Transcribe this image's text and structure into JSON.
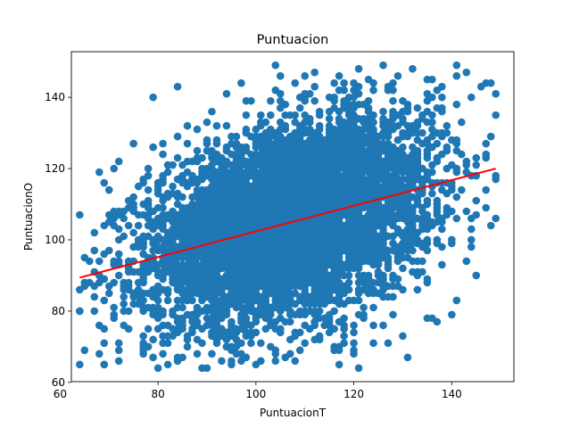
{
  "chart_data": {
    "type": "scatter",
    "title": "Puntuacion",
    "xlabel": "PuntuacionT",
    "ylabel": "PuntuacionO",
    "xlim": [
      62.3,
      152.7
    ],
    "ylim": [
      60.2,
      152.8
    ],
    "xticks": [
      60,
      80,
      100,
      120,
      140
    ],
    "yticks": [
      60,
      80,
      100,
      120,
      140
    ],
    "grid": false,
    "point_color": "#1f77b4",
    "fit_line_color": "#ff0000",
    "scatter_cloud": {
      "n_points": 6000,
      "x_mean": 107,
      "x_sd": 14.5,
      "y_mean": 105,
      "y_sd": 13.5,
      "x_range": [
        64,
        149
      ],
      "y_range": [
        64,
        149
      ],
      "x_integer": true,
      "y_integer": true
    },
    "highlighted_points": [
      {
        "x": 64,
        "y": 80
      },
      {
        "x": 65,
        "y": 69
      },
      {
        "x": 69,
        "y": 65
      },
      {
        "x": 69,
        "y": 71
      },
      {
        "x": 66,
        "y": 94
      },
      {
        "x": 68,
        "y": 119
      },
      {
        "x": 69,
        "y": 116
      },
      {
        "x": 72,
        "y": 122
      },
      {
        "x": 75,
        "y": 127
      },
      {
        "x": 79,
        "y": 140
      },
      {
        "x": 80,
        "y": 64
      },
      {
        "x": 79,
        "y": 67
      },
      {
        "x": 72,
        "y": 69
      },
      {
        "x": 95,
        "y": 66
      },
      {
        "x": 84,
        "y": 143
      },
      {
        "x": 97,
        "y": 144
      },
      {
        "x": 104,
        "y": 149
      },
      {
        "x": 121,
        "y": 148
      },
      {
        "x": 141,
        "y": 149
      },
      {
        "x": 143,
        "y": 147
      },
      {
        "x": 146,
        "y": 143
      },
      {
        "x": 148,
        "y": 144
      },
      {
        "x": 149,
        "y": 141
      },
      {
        "x": 140,
        "y": 79
      },
      {
        "x": 143,
        "y": 94
      },
      {
        "x": 144,
        "y": 98
      },
      {
        "x": 149,
        "y": 106
      },
      {
        "x": 147,
        "y": 114
      },
      {
        "x": 147,
        "y": 124
      },
      {
        "x": 94,
        "y": 70
      },
      {
        "x": 110,
        "y": 71
      },
      {
        "x": 117,
        "y": 69
      },
      {
        "x": 120,
        "y": 69
      },
      {
        "x": 124,
        "y": 71
      },
      {
        "x": 138,
        "y": 130
      },
      {
        "x": 144,
        "y": 140
      }
    ],
    "fit_line": {
      "x": [
        64,
        149
      ],
      "y": [
        89.4,
        120.0
      ]
    }
  }
}
